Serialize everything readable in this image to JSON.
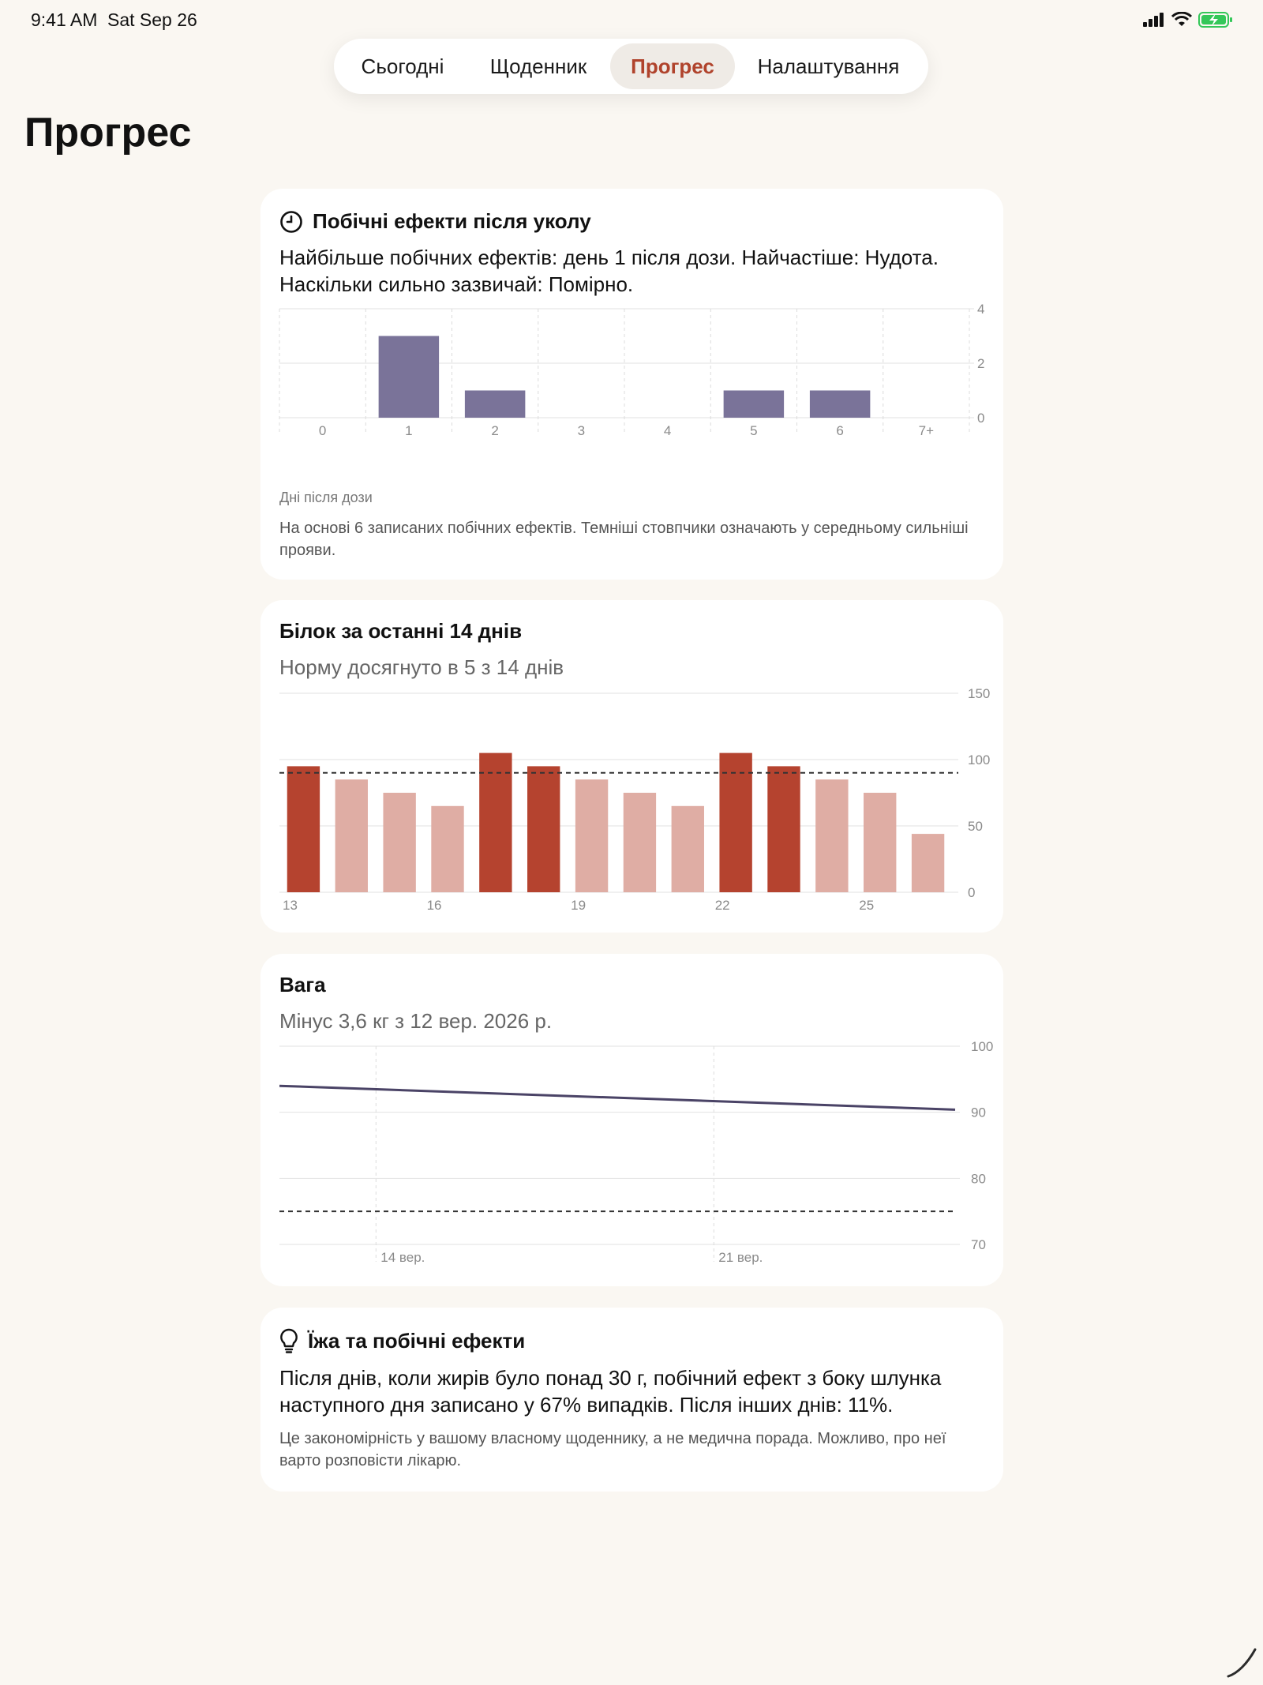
{
  "status": {
    "time": "9:41 AM",
    "date": "Sat Sep 26"
  },
  "nav": {
    "tabs": [
      {
        "label": "Сьогодні"
      },
      {
        "label": "Щоденник"
      },
      {
        "label": "Прогрес"
      },
      {
        "label": "Налаштування"
      }
    ],
    "active_index": 2
  },
  "page": {
    "title": "Прогрес"
  },
  "side_effects": {
    "title": "Побічні ефекти після уколу",
    "summary": "Найбільше побічних ефектів: день 1 після дози. Найчастіше: Нудота. Наскільки сильно зазвичай: Помірно.",
    "xlabel": "Дні після дози",
    "footnote": "На основі 6 записаних побічних ефектів. Темніші стовпчики означають у середньому сильніші прояви."
  },
  "protein": {
    "title": "Білок за останні 14 днів",
    "subtitle": "Норму досягнуто в 5 з 14 днів"
  },
  "weight": {
    "title": "Вага",
    "subtitle": "Мінус 3,6 кг з 12 вер. 2026 р."
  },
  "insight": {
    "title": "Їжа та побічні ефекти",
    "body": "Після днів, коли жирів було понад 30 г, побічний ефект з боку шлунка наступного дня записано у 67% випадків. Після інших днів: 11%.",
    "footnote": "Це закономірність у вашому власному щоденнику, а не медична порада. Можливо, про неї варто розповісти лікарю."
  },
  "chart_data": [
    {
      "type": "bar",
      "categories": [
        "0",
        "1",
        "2",
        "3",
        "4",
        "5",
        "6",
        "7+"
      ],
      "values": [
        0,
        3,
        1,
        0,
        0,
        1,
        1,
        0
      ],
      "xlabel": "Дні після дози",
      "ylim": [
        0,
        4
      ],
      "yticks": [
        0,
        2,
        4
      ],
      "color": "#7A7399",
      "grid": true
    },
    {
      "type": "bar",
      "categories": [
        "13",
        "14",
        "15",
        "16",
        "17",
        "18",
        "19",
        "20",
        "21",
        "22",
        "23",
        "24",
        "25",
        "26"
      ],
      "xticks": [
        "13",
        "16",
        "19",
        "22",
        "25"
      ],
      "values": [
        95,
        85,
        75,
        65,
        105,
        95,
        85,
        75,
        65,
        105,
        95,
        85,
        75,
        44
      ],
      "goal": 90,
      "goal_met": [
        true,
        false,
        false,
        false,
        true,
        true,
        false,
        false,
        false,
        true,
        true,
        false,
        false,
        false
      ],
      "ylim": [
        0,
        150
      ],
      "yticks": [
        0,
        50,
        100,
        150
      ],
      "colors": {
        "met": "#B5432F",
        "not_met": "#DFADA4"
      },
      "grid": true
    },
    {
      "type": "line",
      "x": [
        "12 вер.",
        "26 вер."
      ],
      "x_days": [
        12,
        26
      ],
      "values": [
        94,
        90.4
      ],
      "xticks": [
        {
          "day": 14,
          "label": "14 вер."
        },
        {
          "day": 21,
          "label": "21 вер."
        }
      ],
      "target": 75,
      "ylim": [
        70,
        100
      ],
      "yticks": [
        70,
        80,
        90,
        100
      ],
      "color": "#4A4366",
      "grid": true
    }
  ]
}
